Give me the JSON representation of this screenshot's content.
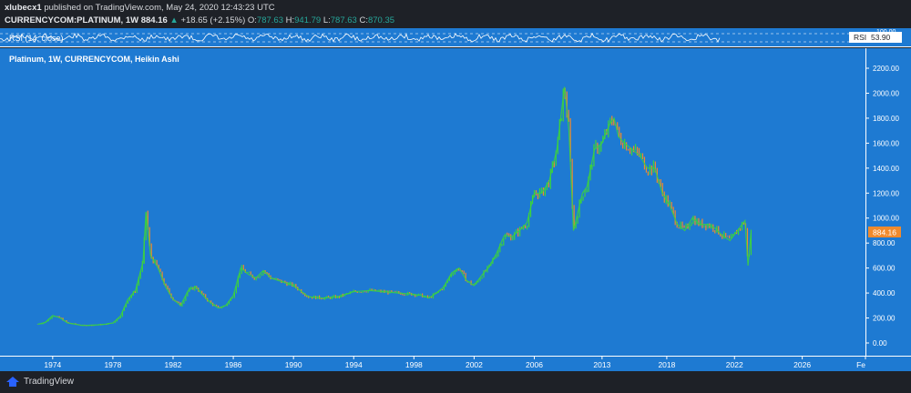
{
  "header": {
    "author": "xlubecx1",
    "published_text": "published on TradingView.com, May 24, 2020 12:43:23 UTC",
    "symbol": "CURRENCYCOM:PLATINUM, 1W",
    "last": "884.16",
    "change": "+18.65 (+2.15%)",
    "o_label": "O:",
    "o_value": "787.63",
    "h_label": "H:",
    "h_value": "941.79",
    "l_label": "L:",
    "l_value": "787.63",
    "c_label": "C:",
    "c_value": "870.35"
  },
  "rsi": {
    "label": "RSI (14, close)",
    "value_label": "RSI",
    "value": "53.90",
    "axis_top_label": "100.00"
  },
  "main": {
    "legend": "Platinum, 1W, CURRENCYCOM, Heikin Ashi",
    "price_label": "884.16"
  },
  "brand": {
    "name": "TradingView"
  },
  "colors": {
    "background": "#1e7ad2",
    "up": "#3cd33c",
    "down": "#f08a2c",
    "rsi_line": "#ffffff",
    "price_tag": "#f08a2c"
  },
  "chart_data": {
    "type": "line",
    "title": "Platinum, 1W, CURRENCYCOM, Heikin Ashi",
    "xlabel": "",
    "ylabel": "",
    "x_tick_labels": [
      "1974",
      "1978",
      "1982",
      "1986",
      "1990",
      "1994",
      "1998",
      "2002",
      "2006",
      "2013",
      "2018",
      "2022",
      "2026",
      "Fe"
    ],
    "y_tick_labels": [
      "0.00",
      "200.00",
      "400.00",
      "600.00",
      "800.00",
      "1000.00",
      "1200.00",
      "1400.00",
      "1600.00",
      "1800.00",
      "2000.00",
      "2200.00"
    ],
    "ylim": [
      0,
      2200
    ],
    "grid": false,
    "series": [
      {
        "x": [
          1973.0,
          1973.5,
          1974.0,
          1974.5,
          1975.0,
          1975.5,
          1976.0,
          1977.0,
          1977.5,
          1978.0,
          1978.5,
          1979.0,
          1979.5,
          1980.0,
          1980.2,
          1980.5,
          1981.0,
          1981.5,
          1982.0,
          1982.5,
          1983.0,
          1983.5,
          1984.0,
          1984.5,
          1985.0,
          1985.5,
          1986.0,
          1986.5,
          1987.0,
          1987.5,
          1988.0,
          1988.5,
          1989.0,
          1989.5,
          1990.0,
          1991.0,
          1992.0,
          1993.0,
          1994.0,
          1995.0,
          1996.0,
          1997.0,
          1998.0,
          1998.5,
          1999.0,
          1999.5,
          2000.0,
          2000.5,
          2001.0,
          2001.5,
          2002.0,
          2002.5,
          2003.0,
          2003.5,
          2004.0,
          2004.5,
          2005.0,
          2005.5,
          2006.0,
          2006.5,
          2007.0,
          2007.5,
          2008.0,
          2008.3,
          2008.6,
          2008.9,
          2009.2,
          2009.5,
          2010.0,
          2010.5,
          2011.0,
          2011.3,
          2011.6,
          2012.0,
          2012.5,
          2013.0,
          2013.5,
          2014.0,
          2014.5,
          2015.0,
          2015.5,
          2016.0,
          2016.5,
          2017.0,
          2017.5,
          2018.0,
          2018.5,
          2019.0,
          2019.5,
          2020.0,
          2020.2,
          2020.4
        ],
        "values": [
          150,
          165,
          220,
          200,
          160,
          150,
          140,
          145,
          150,
          160,
          215,
          350,
          420,
          650,
          1050,
          700,
          600,
          450,
          350,
          300,
          420,
          450,
          380,
          320,
          280,
          300,
          380,
          600,
          550,
          520,
          580,
          520,
          500,
          480,
          460,
          370,
          360,
          370,
          410,
          420,
          410,
          400,
          390,
          380,
          360,
          400,
          450,
          560,
          600,
          500,
          460,
          540,
          610,
          720,
          860,
          850,
          900,
          960,
          1200,
          1200,
          1300,
          1550,
          2050,
          1700,
          900,
          1050,
          1200,
          1250,
          1550,
          1600,
          1750,
          1800,
          1650,
          1600,
          1550,
          1500,
          1400,
          1400,
          1200,
          1100,
          950,
          900,
          1000,
          950,
          950,
          920,
          860,
          820,
          900,
          980,
          620,
          884
        ]
      }
    ]
  }
}
